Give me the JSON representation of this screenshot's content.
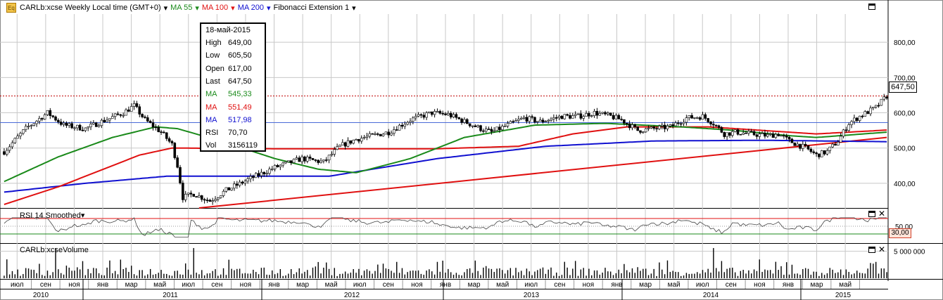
{
  "header": {
    "symbol_title": "CARLb:xcse Weekly Local time (GMT+0)",
    "ma55_label": "MA 55",
    "ma100_label": "MA 100",
    "ma200_label": "MA 200",
    "fib_label": "Fibonacci Extension 1",
    "dropdown_glyph": "▾"
  },
  "tooltip": {
    "date": "18-май-2015",
    "rows": [
      {
        "k": "High",
        "v": "649,00",
        "color": "#000000"
      },
      {
        "k": "Low",
        "v": "605,50",
        "color": "#000000"
      },
      {
        "k": "Open",
        "v": "617,00",
        "color": "#000000"
      },
      {
        "k": "Last",
        "v": "647,50",
        "color": "#000000"
      },
      {
        "k": "MA",
        "v": "545,33",
        "color": "#1a8a1a"
      },
      {
        "k": "MA",
        "v": "551,49",
        "color": "#e01010"
      },
      {
        "k": "MA",
        "v": "517,98",
        "color": "#1010d0"
      },
      {
        "k": "RSI",
        "v": "70,70",
        "color": "#000000"
      },
      {
        "k": "Vol",
        "v": "3156119",
        "color": "#000000"
      }
    ]
  },
  "last_price_tag": "647,50",
  "rsi_panel": {
    "title": "RSI 14 Smoothed",
    "level_tag": "30,00",
    "axis_label": "50,00"
  },
  "volume_panel": {
    "title": "CARLb:xcseVolume",
    "axis_label": "5 000 000"
  },
  "colors": {
    "ma55": "#1a8a1a",
    "ma100": "#e01010",
    "ma200": "#1010d0",
    "grid": "#c8c8c8",
    "last_line": "#c00000"
  },
  "chart_data": {
    "type": "candlestick",
    "price_axis": {
      "ticks": [
        "400,00",
        "500,00",
        "600,00",
        "700,00",
        "800,00"
      ],
      "ylim": [
        330,
        880
      ]
    },
    "month_labels": [
      "июл",
      "сен",
      "ноя",
      "янв",
      "мар",
      "май",
      "июл",
      "сен",
      "ноя",
      "янв",
      "мар",
      "май",
      "июл",
      "сен",
      "ноя",
      "янв",
      "мар",
      "май",
      "июл",
      "сен",
      "ноя",
      "янв",
      "мар",
      "май",
      "июл",
      "сен",
      "ноя",
      "янв",
      "мар",
      "май"
    ],
    "year_labels": [
      "2010",
      "2011",
      "2012",
      "2013",
      "2014",
      "2015"
    ],
    "price_anchors": [
      [
        0,
        490
      ],
      [
        8,
        555
      ],
      [
        16,
        600
      ],
      [
        22,
        565
      ],
      [
        30,
        555
      ],
      [
        36,
        575
      ],
      [
        44,
        600
      ],
      [
        48,
        620
      ],
      [
        52,
        580
      ],
      [
        58,
        545
      ],
      [
        62,
        510
      ],
      [
        64,
        450
      ],
      [
        66,
        360
      ],
      [
        70,
        370
      ],
      [
        76,
        350
      ],
      [
        82,
        380
      ],
      [
        90,
        410
      ],
      [
        100,
        445
      ],
      [
        110,
        470
      ],
      [
        118,
        460
      ],
      [
        124,
        505
      ],
      [
        130,
        525
      ],
      [
        136,
        535
      ],
      [
        142,
        545
      ],
      [
        150,
        580
      ],
      [
        158,
        600
      ],
      [
        164,
        595
      ],
      [
        170,
        575
      ],
      [
        176,
        555
      ],
      [
        180,
        545
      ],
      [
        186,
        565
      ],
      [
        192,
        585
      ],
      [
        198,
        575
      ],
      [
        206,
        590
      ],
      [
        212,
        590
      ],
      [
        218,
        600
      ],
      [
        224,
        590
      ],
      [
        228,
        580
      ],
      [
        234,
        550
      ],
      [
        240,
        555
      ],
      [
        246,
        560
      ],
      [
        252,
        585
      ],
      [
        258,
        590
      ],
      [
        262,
        570
      ],
      [
        266,
        540
      ],
      [
        270,
        545
      ],
      [
        276,
        540
      ],
      [
        282,
        535
      ],
      [
        286,
        540
      ],
      [
        290,
        520
      ],
      [
        296,
        500
      ],
      [
        300,
        480
      ],
      [
        304,
        490
      ],
      [
        308,
        520
      ],
      [
        312,
        570
      ],
      [
        316,
        590
      ],
      [
        322,
        615
      ],
      [
        326,
        647.5
      ]
    ],
    "ma55_anchors": [
      [
        0,
        405
      ],
      [
        20,
        475
      ],
      [
        40,
        530
      ],
      [
        56,
        560
      ],
      [
        64,
        555
      ],
      [
        80,
        520
      ],
      [
        100,
        470
      ],
      [
        116,
        440
      ],
      [
        130,
        430
      ],
      [
        150,
        470
      ],
      [
        170,
        530
      ],
      [
        196,
        565
      ],
      [
        222,
        570
      ],
      [
        250,
        560
      ],
      [
        270,
        550
      ],
      [
        290,
        535
      ],
      [
        300,
        530
      ],
      [
        326,
        545
      ]
    ],
    "ma100_anchors": [
      [
        0,
        340
      ],
      [
        20,
        390
      ],
      [
        50,
        480
      ],
      [
        62,
        500
      ],
      [
        100,
        498
      ],
      [
        130,
        498
      ],
      [
        160,
        498
      ],
      [
        190,
        505
      ],
      [
        210,
        540
      ],
      [
        230,
        560
      ],
      [
        260,
        560
      ],
      [
        290,
        545
      ],
      [
        300,
        540
      ],
      [
        326,
        551
      ]
    ],
    "ma200_anchors": [
      [
        0,
        375
      ],
      [
        30,
        400
      ],
      [
        60,
        420
      ],
      [
        120,
        420
      ],
      [
        160,
        470
      ],
      [
        200,
        505
      ],
      [
        240,
        520
      ],
      [
        280,
        522
      ],
      [
        326,
        518
      ]
    ],
    "fib_trendline": [
      [
        72,
        330
      ],
      [
        326,
        530
      ]
    ],
    "last_price": 647.5,
    "rsi_levels": [
      30,
      50,
      70
    ],
    "volume_max": 6000000
  }
}
